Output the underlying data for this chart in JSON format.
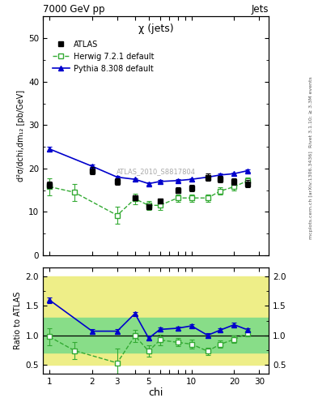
{
  "title_top": "7000 GeV pp",
  "title_right": "Jets",
  "plot_title": "χ (jets)",
  "watermark": "ATLAS_2010_S8817804",
  "rivet_label": "Rivet 3.1.10; ≥ 3.3M events",
  "arxiv_label": "mcplots.cern.ch [arXiv:1306.3436]",
  "xlabel": "chi",
  "ylabel_main": "d²σ/dchi,dm₁₂ [pb/GeV]",
  "ylabel_ratio": "Ratio to ATLAS",
  "ylim_main": [
    0,
    55
  ],
  "ylim_ratio": [
    0.35,
    2.15
  ],
  "xmin": 0.9,
  "xmax": 35,
  "atlas_color": "#000000",
  "herwig_color": "#33aa33",
  "pythia_color": "#0000cc",
  "band_yellow_lo": 0.5,
  "band_yellow_hi": 2.0,
  "band_green_lo": 0.7,
  "band_green_hi": 1.3,
  "band_yellow_color": "#eeee88",
  "band_green_color": "#88dd88",
  "chi_atlas": [
    1.0,
    2.0,
    3.0,
    4.0,
    5.0,
    6.0,
    8.0,
    10.0,
    13.0,
    16.0,
    20.0,
    25.0
  ],
  "atlas_y": [
    16.2,
    19.5,
    17.0,
    13.2,
    11.2,
    12.5,
    15.0,
    15.5,
    18.0,
    17.5,
    17.0,
    16.5
  ],
  "atlas_ey": [
    0.8,
    0.8,
    0.7,
    0.6,
    0.5,
    0.6,
    0.7,
    0.7,
    0.8,
    0.8,
    0.8,
    0.8
  ],
  "chi_herwig": [
    1.0,
    1.5,
    3.0,
    4.0,
    5.0,
    6.0,
    8.0,
    10.0,
    13.0,
    16.0,
    20.0,
    25.0
  ],
  "herwig_y": [
    15.8,
    14.5,
    9.2,
    13.0,
    11.5,
    11.5,
    13.2,
    13.2,
    13.2,
    14.8,
    15.8,
    17.2
  ],
  "herwig_ey": [
    2.0,
    2.0,
    2.0,
    1.2,
    1.0,
    1.0,
    0.8,
    0.8,
    0.8,
    0.8,
    0.8,
    0.8
  ],
  "chi_pythia": [
    1.0,
    2.0,
    3.0,
    4.0,
    5.0,
    6.0,
    8.0,
    10.0,
    13.0,
    16.0,
    20.0,
    25.0
  ],
  "pythia_y": [
    24.5,
    20.5,
    18.0,
    17.5,
    16.5,
    17.0,
    17.2,
    17.5,
    18.0,
    18.5,
    18.8,
    19.5
  ],
  "pythia_ey": [
    0.5,
    0.4,
    0.3,
    0.3,
    0.3,
    0.3,
    0.3,
    0.3,
    0.3,
    0.3,
    0.3,
    0.3
  ],
  "ratio_herwig_x": [
    1.0,
    1.5,
    3.0,
    4.0,
    5.0,
    6.0,
    8.0,
    10.0,
    13.0,
    16.0,
    20.0,
    25.0
  ],
  "ratio_herwig_y": [
    0.975,
    0.74,
    0.53,
    0.99,
    0.73,
    0.92,
    0.88,
    0.85,
    0.73,
    0.85,
    0.93,
    1.04
  ],
  "ratio_herwig_e": [
    0.14,
    0.15,
    0.25,
    0.1,
    0.1,
    0.09,
    0.07,
    0.07,
    0.06,
    0.06,
    0.06,
    0.06
  ],
  "ratio_pythia_x": [
    1.0,
    2.0,
    3.0,
    4.0,
    5.0,
    6.0,
    8.0,
    10.0,
    13.0,
    16.0,
    20.0,
    25.0
  ],
  "ratio_pythia_y": [
    1.6,
    1.07,
    1.07,
    1.37,
    0.95,
    1.1,
    1.12,
    1.16,
    1.0,
    1.09,
    1.18,
    1.09
  ],
  "ratio_pythia_e": [
    0.05,
    0.03,
    0.03,
    0.03,
    0.03,
    0.03,
    0.03,
    0.03,
    0.03,
    0.03,
    0.03,
    0.03
  ]
}
